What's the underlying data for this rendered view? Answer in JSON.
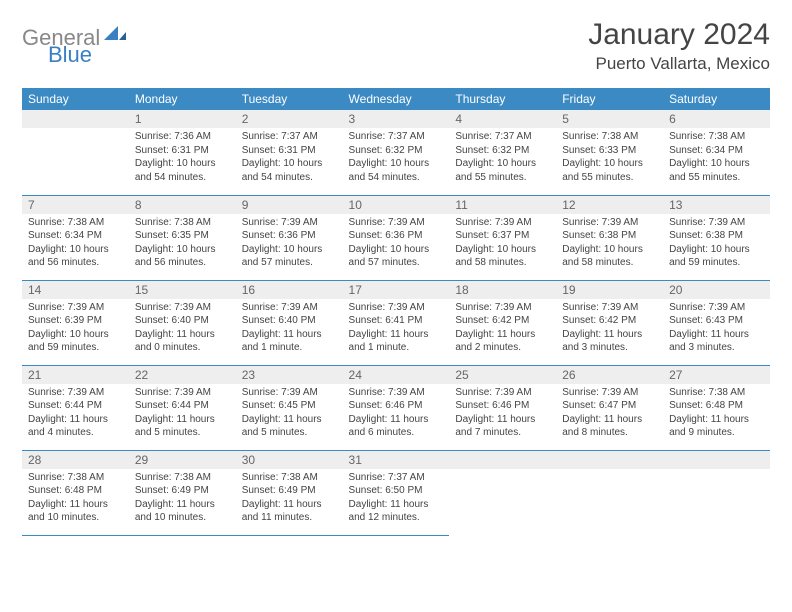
{
  "logo": {
    "general": "General",
    "blue": "Blue"
  },
  "header": {
    "month": "January 2024",
    "location": "Puerto Vallarta, Mexico"
  },
  "dayHeaders": [
    "Sunday",
    "Monday",
    "Tuesday",
    "Wednesday",
    "Thursday",
    "Friday",
    "Saturday"
  ],
  "colors": {
    "header_bg": "#3b8ac4",
    "header_text": "#ffffff",
    "daynum_bg": "#eeeeee",
    "body_text": "#444444",
    "logo_gray": "#888888",
    "logo_blue": "#3a7fc4"
  },
  "grid": {
    "rows": 5,
    "cols": 7,
    "first_weekday_index": 1,
    "days_in_month": 31
  },
  "days": {
    "1": {
      "sunrise": "7:36 AM",
      "sunset": "6:31 PM",
      "daylight": "10 hours and 54 minutes."
    },
    "2": {
      "sunrise": "7:37 AM",
      "sunset": "6:31 PM",
      "daylight": "10 hours and 54 minutes."
    },
    "3": {
      "sunrise": "7:37 AM",
      "sunset": "6:32 PM",
      "daylight": "10 hours and 54 minutes."
    },
    "4": {
      "sunrise": "7:37 AM",
      "sunset": "6:32 PM",
      "daylight": "10 hours and 55 minutes."
    },
    "5": {
      "sunrise": "7:38 AM",
      "sunset": "6:33 PM",
      "daylight": "10 hours and 55 minutes."
    },
    "6": {
      "sunrise": "7:38 AM",
      "sunset": "6:34 PM",
      "daylight": "10 hours and 55 minutes."
    },
    "7": {
      "sunrise": "7:38 AM",
      "sunset": "6:34 PM",
      "daylight": "10 hours and 56 minutes."
    },
    "8": {
      "sunrise": "7:38 AM",
      "sunset": "6:35 PM",
      "daylight": "10 hours and 56 minutes."
    },
    "9": {
      "sunrise": "7:39 AM",
      "sunset": "6:36 PM",
      "daylight": "10 hours and 57 minutes."
    },
    "10": {
      "sunrise": "7:39 AM",
      "sunset": "6:36 PM",
      "daylight": "10 hours and 57 minutes."
    },
    "11": {
      "sunrise": "7:39 AM",
      "sunset": "6:37 PM",
      "daylight": "10 hours and 58 minutes."
    },
    "12": {
      "sunrise": "7:39 AM",
      "sunset": "6:38 PM",
      "daylight": "10 hours and 58 minutes."
    },
    "13": {
      "sunrise": "7:39 AM",
      "sunset": "6:38 PM",
      "daylight": "10 hours and 59 minutes."
    },
    "14": {
      "sunrise": "7:39 AM",
      "sunset": "6:39 PM",
      "daylight": "10 hours and 59 minutes."
    },
    "15": {
      "sunrise": "7:39 AM",
      "sunset": "6:40 PM",
      "daylight": "11 hours and 0 minutes."
    },
    "16": {
      "sunrise": "7:39 AM",
      "sunset": "6:40 PM",
      "daylight": "11 hours and 1 minute."
    },
    "17": {
      "sunrise": "7:39 AM",
      "sunset": "6:41 PM",
      "daylight": "11 hours and 1 minute."
    },
    "18": {
      "sunrise": "7:39 AM",
      "sunset": "6:42 PM",
      "daylight": "11 hours and 2 minutes."
    },
    "19": {
      "sunrise": "7:39 AM",
      "sunset": "6:42 PM",
      "daylight": "11 hours and 3 minutes."
    },
    "20": {
      "sunrise": "7:39 AM",
      "sunset": "6:43 PM",
      "daylight": "11 hours and 3 minutes."
    },
    "21": {
      "sunrise": "7:39 AM",
      "sunset": "6:44 PM",
      "daylight": "11 hours and 4 minutes."
    },
    "22": {
      "sunrise": "7:39 AM",
      "sunset": "6:44 PM",
      "daylight": "11 hours and 5 minutes."
    },
    "23": {
      "sunrise": "7:39 AM",
      "sunset": "6:45 PM",
      "daylight": "11 hours and 5 minutes."
    },
    "24": {
      "sunrise": "7:39 AM",
      "sunset": "6:46 PM",
      "daylight": "11 hours and 6 minutes."
    },
    "25": {
      "sunrise": "7:39 AM",
      "sunset": "6:46 PM",
      "daylight": "11 hours and 7 minutes."
    },
    "26": {
      "sunrise": "7:39 AM",
      "sunset": "6:47 PM",
      "daylight": "11 hours and 8 minutes."
    },
    "27": {
      "sunrise": "7:38 AM",
      "sunset": "6:48 PM",
      "daylight": "11 hours and 9 minutes."
    },
    "28": {
      "sunrise": "7:38 AM",
      "sunset": "6:48 PM",
      "daylight": "11 hours and 10 minutes."
    },
    "29": {
      "sunrise": "7:38 AM",
      "sunset": "6:49 PM",
      "daylight": "11 hours and 10 minutes."
    },
    "30": {
      "sunrise": "7:38 AM",
      "sunset": "6:49 PM",
      "daylight": "11 hours and 11 minutes."
    },
    "31": {
      "sunrise": "7:37 AM",
      "sunset": "6:50 PM",
      "daylight": "11 hours and 12 minutes."
    }
  },
  "labels": {
    "sunrise": "Sunrise: ",
    "sunset": "Sunset: ",
    "daylight": "Daylight: "
  }
}
